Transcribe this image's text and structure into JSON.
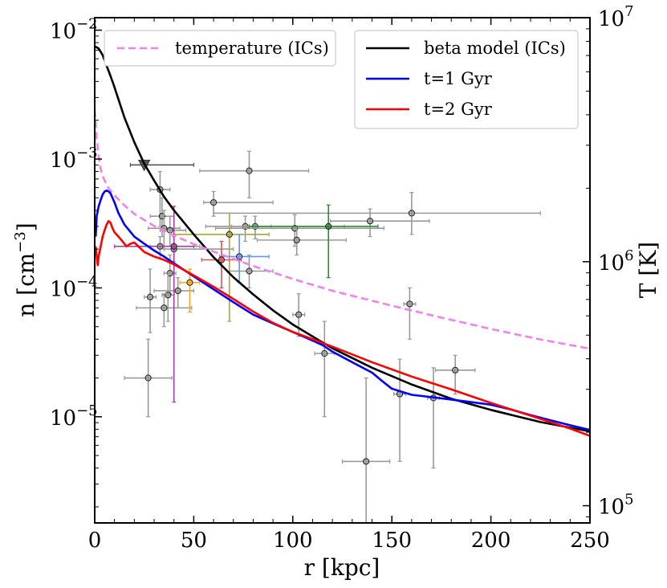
{
  "chart_data": {
    "type": "line",
    "xlabel": "r [kpc]",
    "ylabel_left": "n [cm",
    "ylabel_left_exp": "−3",
    "ylabel_left_close": "]",
    "ylabel_right": "T [K]",
    "xlim": [
      0,
      250
    ],
    "ylim_left": [
      1.5e-06,
      0.0125
    ],
    "ylim_right": [
      85000,
      10000000
    ],
    "xscale": "linear",
    "yscale": "log",
    "x_ticks": [
      0,
      50,
      100,
      150,
      200,
      250
    ],
    "x_tick_labels": [
      "0",
      "50",
      "100",
      "150",
      "200",
      "250"
    ],
    "y_left_ticks": [
      {
        "value": 0.01,
        "base": "10",
        "exp": "−2"
      },
      {
        "value": 0.001,
        "base": "10",
        "exp": "−3"
      },
      {
        "value": 0.0001,
        "base": "10",
        "exp": "−4"
      },
      {
        "value": 1e-05,
        "base": "10",
        "exp": "−5"
      }
    ],
    "y_right_ticks": [
      {
        "value": 100000,
        "base": "10",
        "exp": "5"
      },
      {
        "value": 1000000,
        "base": "10",
        "exp": "6"
      },
      {
        "value": 10000000,
        "base": "10",
        "exp": "7"
      }
    ],
    "legend_left": [
      {
        "label": "temperature (ICs)",
        "color": "#ee82ee",
        "dash": true
      }
    ],
    "legend_right": [
      {
        "label": "beta model (ICs)",
        "color": "#000000",
        "dash": false
      },
      {
        "label": "t=1 Gyr",
        "color": "#0000ff",
        "dash": false
      },
      {
        "label": "t=2 Gyr",
        "color": "#ff0000",
        "dash": false
      }
    ],
    "series": [
      {
        "name": "beta model (ICs)",
        "color": "#000000",
        "axis": "left",
        "x": [
          0,
          2,
          4,
          6,
          8,
          10,
          12,
          15,
          20,
          25,
          30,
          35,
          40,
          50,
          60,
          70,
          80,
          90,
          100,
          110,
          120,
          140,
          160,
          180,
          200,
          225,
          250
        ],
        "y": [
          0.0075,
          0.0072,
          0.0064,
          0.0053,
          0.0044,
          0.0036,
          0.0029,
          0.0021,
          0.00135,
          0.00092,
          0.00068,
          0.00051,
          0.0004,
          0.00026,
          0.000173,
          0.000121,
          8.9e-05,
          6.7e-05,
          5.2e-05,
          4.2e-05,
          3.4e-05,
          2.4e-05,
          1.78e-05,
          1.38e-05,
          1.13e-05,
          9.1e-06,
          7.7e-06
        ]
      },
      {
        "name": "temperature (ICs)",
        "color": "#ee82ee",
        "axis": "right",
        "dashed": true,
        "x": [
          0,
          0.5,
          1,
          2,
          3,
          4,
          5,
          7,
          10,
          15,
          20,
          30,
          40,
          50,
          60,
          80,
          100,
          120,
          150,
          175,
          200,
          225,
          250
        ],
        "y": [
          4200000,
          3700000,
          3200000,
          2700000,
          2400000,
          2250000,
          2150000,
          2000000,
          1870000,
          1700000,
          1570000,
          1400000,
          1280000,
          1180000,
          1100000,
          960000,
          850000,
          760000,
          660000,
          590000,
          530000,
          480000,
          440000
        ]
      },
      {
        "name": "t=1 Gyr",
        "color": "#0000ff",
        "axis": "left",
        "x": [
          0.5,
          1,
          2,
          3,
          4,
          5,
          6,
          7,
          8,
          10,
          12,
          15,
          20,
          25,
          30,
          35,
          40,
          50,
          60,
          70,
          80,
          90,
          100,
          110,
          115,
          120,
          130,
          140,
          145,
          150,
          160,
          170,
          180,
          190,
          200,
          210,
          220,
          230,
          240,
          250
        ],
        "y": [
          0.00025,
          0.00036,
          0.00043,
          0.00048,
          0.00053,
          0.00056,
          0.00057,
          0.00056,
          0.00054,
          0.00046,
          0.00038,
          0.00031,
          0.00025,
          0.00022,
          0.000195,
          0.000175,
          0.000155,
          0.000123,
          9.75e-05,
          7.75e-05,
          6.2e-05,
          5.3e-05,
          4.55e-05,
          3.9e-05,
          3.6e-05,
          3.2e-05,
          2.65e-05,
          2.2e-05,
          1.9e-05,
          1.65e-05,
          1.48e-05,
          1.42e-05,
          1.36e-05,
          1.3e-05,
          1.24e-05,
          1.14e-05,
          1.03e-05,
          9.4e-06,
          8.6e-06,
          7.9e-06
        ]
      },
      {
        "name": "t=2 Gyr",
        "color": "#ff0000",
        "axis": "left",
        "x": [
          0.5,
          1,
          1.5,
          2,
          3,
          4,
          5,
          6,
          7,
          8,
          9,
          10,
          12,
          14,
          16,
          18,
          20,
          22,
          25,
          30,
          35,
          40,
          50,
          60,
          70,
          80,
          90,
          100,
          110,
          120,
          140,
          160,
          180,
          200,
          220,
          240,
          250
        ],
        "y": [
          0.00021,
          0.000175,
          0.00015,
          0.000175,
          0.00021,
          0.00025,
          0.00028,
          0.00031,
          0.00033,
          0.00032,
          0.00029,
          0.00027,
          0.00025,
          0.00023,
          0.00021,
          0.00022,
          0.000225,
          0.00021,
          0.00019,
          0.000175,
          0.000165,
          0.000152,
          0.000125,
          0.000102,
          8.2e-05,
          6.55e-05,
          5.35e-05,
          4.55e-05,
          4e-05,
          3.5e-05,
          2.65e-05,
          2.05e-05,
          1.63e-05,
          1.28e-05,
          1.02e-05,
          8.1e-06,
          7.1e-06
        ]
      }
    ],
    "upper_limit": {
      "x": 25,
      "y": 0.0009,
      "xerr": [
        18,
        50
      ],
      "color": "#555555"
    },
    "observations": [
      {
        "x": 33,
        "y": 0.00058,
        "xlo": 5,
        "xhi": 5,
        "ylo": 0.0003,
        "yhi": 0.0008,
        "color": "#999999"
      },
      {
        "x": 78,
        "y": 0.00081,
        "xlo": 25,
        "xhi": 30,
        "ylo": 0.0005,
        "yhi": 0.00115,
        "color": "#999999"
      },
      {
        "x": 60,
        "y": 0.00046,
        "xlo": 5,
        "xhi": 30,
        "ylo": 0.00036,
        "yhi": 0.00056,
        "color": "#999999"
      },
      {
        "x": 34,
        "y": 0.00036,
        "xlo": 6,
        "xhi": 6,
        "ylo": 0.00025,
        "yhi": 0.0005,
        "color": "#999999"
      },
      {
        "x": 35,
        "y": 0.00029,
        "xlo": 8,
        "xhi": 8,
        "ylo": 0.0002,
        "yhi": 0.0004,
        "color": "#999999"
      },
      {
        "x": 38,
        "y": 0.00028,
        "xlo": 5,
        "xhi": 8,
        "ylo": 0.00021,
        "yhi": 0.00036,
        "color": "#999999"
      },
      {
        "x": 33,
        "y": 0.00021,
        "xlo": 5,
        "xhi": 20,
        "ylo": 0.00017,
        "yhi": 0.00025,
        "color": "#999999"
      },
      {
        "x": 40,
        "y": 0.0002,
        "xlo": 5,
        "xhi": 30,
        "ylo": 0.00016,
        "yhi": 0.00025,
        "color": "#999999"
      },
      {
        "x": 38,
        "y": 0.00013,
        "xlo": 3,
        "xhi": 3,
        "ylo": 9e-05,
        "yhi": 0.00018,
        "color": "#999999"
      },
      {
        "x": 37,
        "y": 8.8e-05,
        "xlo": 3,
        "xhi": 3,
        "ylo": 5.5e-05,
        "yhi": 0.00013,
        "color": "#999999"
      },
      {
        "x": 42,
        "y": 9.5e-05,
        "xlo": 12,
        "xhi": 8,
        "ylo": 7e-05,
        "yhi": 0.00012,
        "color": "#999999"
      },
      {
        "x": 35,
        "y": 7e-05,
        "xlo": 14,
        "xhi": 14,
        "ylo": 5e-05,
        "yhi": 9e-05,
        "color": "#999999"
      },
      {
        "x": 28,
        "y": 8.5e-05,
        "xlo": 3,
        "xhi": 3,
        "ylo": 4.5e-05,
        "yhi": 0.00014,
        "color": "#999999"
      },
      {
        "x": 27,
        "y": 2e-05,
        "xlo": 12,
        "xhi": 12,
        "ylo": 1e-05,
        "yhi": 4e-05,
        "color": "#999999"
      },
      {
        "x": 76,
        "y": 0.0003,
        "xlo": 20,
        "xhi": 50,
        "ylo": 0.00023,
        "yhi": 0.00036,
        "color": "#999999"
      },
      {
        "x": 81,
        "y": 0.0003,
        "xlo": 12,
        "xhi": 8,
        "ylo": 0.00024,
        "yhi": 0.00036,
        "color": "#999999"
      },
      {
        "x": 78,
        "y": 0.000135,
        "xlo": 10,
        "xhi": 12,
        "ylo": 0.0001,
        "yhi": 0.00018,
        "color": "#999999"
      },
      {
        "x": 101,
        "y": 0.00029,
        "xlo": 40,
        "xhi": 45,
        "ylo": 0.00021,
        "yhi": 0.00037,
        "color": "#999999"
      },
      {
        "x": 102,
        "y": 0.000235,
        "xlo": 20,
        "xhi": 25,
        "ylo": 0.00018,
        "yhi": 0.0003,
        "color": "#999999"
      },
      {
        "x": 139,
        "y": 0.00033,
        "xlo": 20,
        "xhi": 30,
        "ylo": 0.00025,
        "yhi": 0.00041,
        "color": "#999999"
      },
      {
        "x": 160,
        "y": 0.00038,
        "xlo": 100,
        "xhi": 65,
        "ylo": 0.00026,
        "yhi": 0.00055,
        "color": "#999999"
      },
      {
        "x": 103,
        "y": 6.2e-05,
        "xlo": 3,
        "xhi": 3,
        "ylo": 4.2e-05,
        "yhi": 9e-05,
        "color": "#999999"
      },
      {
        "x": 116,
        "y": 3.1e-05,
        "xlo": 5,
        "xhi": 5,
        "ylo": 1e-05,
        "yhi": 5.5e-05,
        "color": "#999999"
      },
      {
        "x": 159,
        "y": 7.5e-05,
        "xlo": 3,
        "xhi": 3,
        "ylo": 4e-05,
        "yhi": 0.0001,
        "color": "#999999"
      },
      {
        "x": 182,
        "y": 2.3e-05,
        "xlo": 10,
        "xhi": 10,
        "ylo": 1.5e-05,
        "yhi": 3e-05,
        "color": "#999999"
      },
      {
        "x": 154,
        "y": 1.5e-05,
        "xlo": 3,
        "xhi": 3,
        "ylo": 4.5e-06,
        "yhi": 2.8e-05,
        "color": "#999999"
      },
      {
        "x": 171,
        "y": 1.4e-05,
        "xlo": 3,
        "xhi": 3,
        "ylo": 4e-06,
        "yhi": 2.4e-05,
        "color": "#999999"
      },
      {
        "x": 137,
        "y": 4.5e-06,
        "xlo": 12,
        "xhi": 12,
        "ylo": 1.4e-06,
        "yhi": 2e-05,
        "color": "#999999"
      },
      {
        "x": 68,
        "y": 0.00026,
        "xlo": 30,
        "xhi": 20,
        "ylo": 5.5e-05,
        "yhi": 0.00038,
        "color": "#a8a832"
      },
      {
        "x": 48,
        "y": 0.00011,
        "xlo": 5,
        "xhi": 5,
        "ylo": 6.5e-05,
        "yhi": 0.00014,
        "color": "#f5a623"
      },
      {
        "x": 73,
        "y": 0.000175,
        "xlo": 10,
        "xhi": 15,
        "ylo": 0.00011,
        "yhi": 0.00026,
        "color": "#6495ed"
      },
      {
        "x": 64,
        "y": 0.000165,
        "xlo": 10,
        "xhi": 10,
        "ylo": 0.0001,
        "yhi": 0.00023,
        "color": "#e05050"
      },
      {
        "x": 118,
        "y": 0.0003,
        "xlo": 40,
        "xhi": 25,
        "ylo": 0.00012,
        "yhi": 0.00044,
        "color": "#2e8b2e"
      },
      {
        "x": 40,
        "y": 0.00021,
        "xlo": 30,
        "xhi": 10,
        "ylo": 1.3e-05,
        "yhi": 0.00043,
        "color": "#a040a0"
      }
    ]
  }
}
